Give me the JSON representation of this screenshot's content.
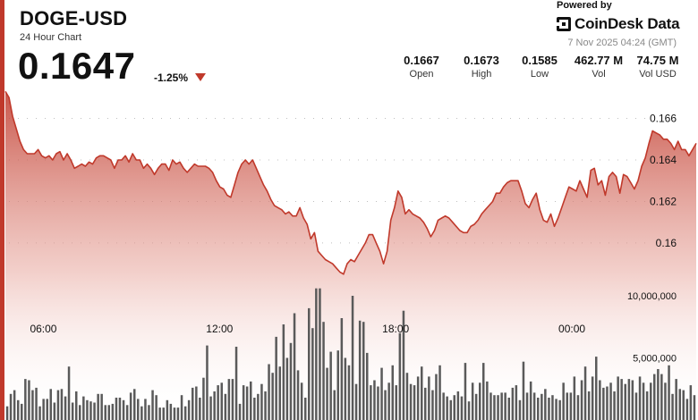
{
  "header": {
    "title": "DOGE-USD",
    "subtitle": "24 Hour Chart",
    "price": "0.1647",
    "change": "-1.25%",
    "powered_by": "Powered by",
    "brand": "CoinDesk Data",
    "timestamp": "7 Nov 2025 04:24 (GMT)"
  },
  "stats": [
    {
      "value": "0.1667",
      "label": "Open"
    },
    {
      "value": "0.1673",
      "label": "High"
    },
    {
      "value": "0.1585",
      "label": "Low"
    },
    {
      "value": "462.77 M",
      "label": "Vol"
    },
    {
      "value": "74.75 M",
      "label": "Vol USD"
    }
  ],
  "colors": {
    "line": "#c0392b",
    "area_top": "#c0392b",
    "volume": "#5a5a5a",
    "accent_bar": "#c0392b"
  },
  "chart_data": {
    "type": "area",
    "x_ticks": [
      "06:00",
      "12:00",
      "18:00",
      "00:00"
    ],
    "price_ticks": [
      "0.166",
      "0.164",
      "0.162",
      "0.16"
    ],
    "volume_ticks": [
      "10,000,000",
      "5,000,000"
    ],
    "price_range": [
      0.1575,
      0.1674
    ],
    "volume_range": [
      0,
      11800000
    ],
    "grid": "dotted horizontal",
    "price_series": [
      0.1673,
      0.167,
      0.1661,
      0.1655,
      0.1649,
      0.1645,
      0.1643,
      0.1643,
      0.1643,
      0.1645,
      0.1642,
      0.1641,
      0.1642,
      0.164,
      0.1643,
      0.1644,
      0.164,
      0.1643,
      0.164,
      0.1636,
      0.1637,
      0.1638,
      0.1637,
      0.1639,
      0.1638,
      0.1641,
      0.1642,
      0.1642,
      0.1641,
      0.164,
      0.1636,
      0.164,
      0.164,
      0.1642,
      0.1639,
      0.1643,
      0.164,
      0.164,
      0.1636,
      0.1638,
      0.1636,
      0.1633,
      0.1636,
      0.1638,
      0.1638,
      0.1635,
      0.164,
      0.1638,
      0.1639,
      0.1636,
      0.1634,
      0.1636,
      0.1638,
      0.1637,
      0.1637,
      0.1637,
      0.1636,
      0.1634,
      0.163,
      0.1627,
      0.1626,
      0.1623,
      0.1622,
      0.1628,
      0.1634,
      0.1638,
      0.164,
      0.1638,
      0.164,
      0.1636,
      0.1632,
      0.1628,
      0.1625,
      0.1621,
      0.1618,
      0.1617,
      0.1616,
      0.1614,
      0.1615,
      0.1613,
      0.1613,
      0.1617,
      0.1612,
      0.1609,
      0.1602,
      0.1605,
      0.1596,
      0.1594,
      0.1592,
      0.1591,
      0.159,
      0.1588,
      0.1586,
      0.1585,
      0.159,
      0.1592,
      0.1591,
      0.1594,
      0.1597,
      0.16,
      0.1604,
      0.1604,
      0.16,
      0.1596,
      0.159,
      0.1596,
      0.1611,
      0.1617,
      0.1625,
      0.1622,
      0.1614,
      0.1616,
      0.1614,
      0.1613,
      0.1612,
      0.161,
      0.1607,
      0.1603,
      0.1606,
      0.1611,
      0.1612,
      0.1613,
      0.1612,
      0.161,
      0.1608,
      0.1606,
      0.1605,
      0.1605,
      0.1608,
      0.1609,
      0.1611,
      0.1614,
      0.1616,
      0.1618,
      0.162,
      0.1624,
      0.1624,
      0.1627,
      0.1629,
      0.163,
      0.163,
      0.163,
      0.1625,
      0.1619,
      0.1617,
      0.1621,
      0.1624,
      0.1616,
      0.1611,
      0.161,
      0.1614,
      0.1608,
      0.1612,
      0.1617,
      0.1622,
      0.1627,
      0.1626,
      0.1625,
      0.163,
      0.1626,
      0.1622,
      0.1635,
      0.1636,
      0.1628,
      0.163,
      0.1623,
      0.1632,
      0.1634,
      0.1632,
      0.1624,
      0.1633,
      0.1632,
      0.1629,
      0.1626,
      0.163,
      0.1637,
      0.1641,
      0.1648,
      0.1654,
      0.1653,
      0.1652,
      0.165,
      0.165,
      0.1648,
      0.1645,
      0.1649,
      0.1645,
      0.1645,
      0.1642,
      0.1645,
      0.1648
    ],
    "volume_series": [
      1100000,
      2100000,
      2400000,
      1600000,
      1300000,
      3300000,
      3200000,
      2400000,
      2600000,
      1100000,
      1700000,
      1700000,
      2500000,
      1400000,
      2400000,
      2500000,
      1900000,
      4300000,
      1400000,
      2300000,
      1200000,
      1900000,
      1600000,
      1500000,
      1400000,
      2100000,
      2100000,
      1200000,
      1200000,
      1300000,
      1800000,
      1800000,
      1600000,
      1200000,
      2200000,
      2500000,
      1700000,
      1100000,
      1700000,
      1200000,
      2400000,
      2000000,
      1000000,
      1000000,
      1600000,
      1300000,
      1000000,
      1000000,
      2000000,
      1100000,
      1600000,
      2600000,
      2700000,
      1800000,
      3400000,
      6000000,
      1900000,
      2300000,
      2800000,
      3000000,
      2100000,
      3300000,
      3300000,
      5900000,
      1300000,
      2800000,
      2700000,
      3100000,
      1800000,
      2100000,
      2900000,
      2300000,
      4500000,
      3800000,
      6700000,
      4300000,
      7700000,
      5000000,
      6200000,
      8600000,
      4000000,
      3000000,
      1800000,
      9000000,
      7400000,
      10600000,
      10600000,
      7900000,
      4200000,
      5500000,
      2400000,
      5600000,
      8200000,
      5000000,
      4400000,
      10000000,
      2900000,
      8000000,
      7900000,
      5400000,
      2800000,
      3200000,
      2700000,
      4200000,
      2400000,
      3000000,
      4400000,
      2800000,
      7000000,
      8800000,
      3800000,
      2900000,
      2800000,
      3500000,
      4300000,
      2600000,
      3500000,
      2400000,
      3700000,
      4400000,
      2200000,
      1900000,
      1600000,
      2000000,
      2300000,
      1900000,
      4600000,
      1500000,
      3000000,
      2100000,
      3000000,
      4600000,
      3100000,
      2200000,
      2000000,
      2000000,
      2200000,
      2200000,
      1800000,
      2600000,
      2800000,
      1600000,
      4700000,
      2200000,
      3100000,
      2200000,
      1800000,
      2100000,
      2500000,
      1800000,
      2000000,
      1700000,
      1600000,
      3000000,
      2200000,
      2200000,
      3500000,
      2000000,
      3200000,
      4300000,
      2300000,
      3500000,
      5100000,
      3200000,
      2600000,
      2700000,
      3000000,
      2300000,
      3500000,
      3300000,
      2900000,
      3300000,
      3200000,
      2200000,
      3500000,
      3000000,
      2300000,
      3000000,
      3700000,
      4100000,
      3700000,
      3000000,
      4400000,
      2100000,
      3300000,
      2500000,
      2400000,
      1700000,
      2800000,
      2000000
    ]
  }
}
